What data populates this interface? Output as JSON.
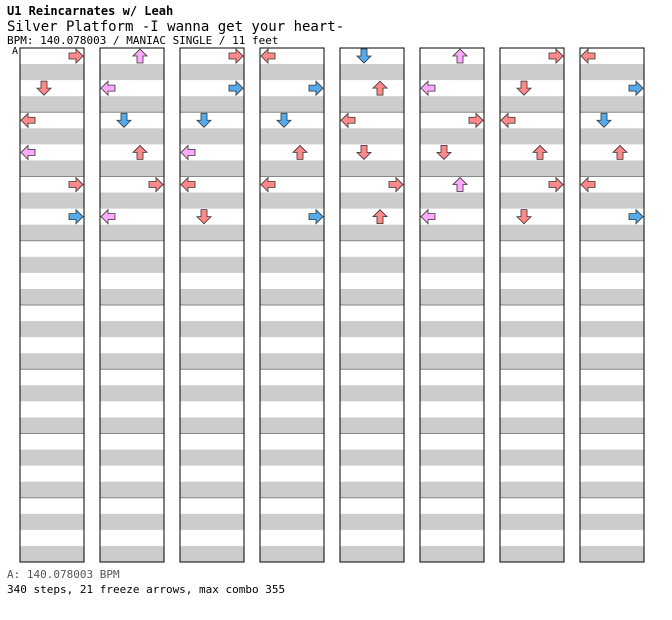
{
  "header": {
    "artist": "U1 Reincarnates w/ Leah",
    "title": "Silver Platform -I wanna get your heart-",
    "meta": "BPM: 140.078003 / MANIAC SINGLE / 11 feet"
  },
  "section_marker": "A",
  "footer": {
    "bpm": "A: 140.078003 BPM",
    "stats": "340 steps, 21 freeze arrows, max combo 355"
  },
  "colors": {
    "red": "#ff8888",
    "blue": "#55aaee",
    "pink": "#ffaaff",
    "freeze": "#aaffaa",
    "stripe": "#cccccc"
  },
  "chart_data": {
    "type": "step-chart",
    "lanes": [
      "left",
      "down",
      "up",
      "right"
    ],
    "columns": 8,
    "measures_per_column": 8,
    "notes": [
      [
        0,
        0,
        3
      ],
      [
        0,
        2,
        1
      ],
      [
        0,
        4,
        0
      ],
      [
        0,
        6,
        0
      ],
      [
        0,
        8,
        3
      ],
      [
        0,
        10,
        3
      ],
      [
        1,
        0,
        2
      ],
      [
        1,
        2,
        0
      ],
      [
        1,
        4,
        1
      ],
      [
        1,
        6,
        2
      ],
      [
        1,
        8,
        3
      ],
      [
        1,
        10,
        0
      ],
      [
        2,
        0,
        3
      ],
      [
        2,
        2,
        3
      ],
      [
        2,
        4,
        1
      ],
      [
        2,
        6,
        0
      ],
      [
        2,
        8,
        0
      ],
      [
        2,
        10,
        1
      ],
      [
        3,
        0,
        0
      ],
      [
        3,
        2,
        3
      ],
      [
        3,
        4,
        1
      ],
      [
        3,
        6,
        2
      ],
      [
        3,
        8,
        0
      ],
      [
        3,
        10,
        3
      ],
      [
        4,
        0,
        1
      ],
      [
        4,
        2,
        2
      ],
      [
        4,
        4,
        0
      ],
      [
        4,
        6,
        1
      ],
      [
        4,
        8,
        3
      ],
      [
        4,
        10,
        2
      ],
      [
        5,
        0,
        2
      ],
      [
        5,
        2,
        0
      ],
      [
        5,
        4,
        3
      ],
      [
        5,
        6,
        1
      ],
      [
        5,
        8,
        2
      ],
      [
        5,
        10,
        0
      ],
      [
        6,
        0,
        3
      ],
      [
        6,
        2,
        1
      ],
      [
        6,
        4,
        0
      ],
      [
        6,
        6,
        2
      ],
      [
        6,
        8,
        3
      ],
      [
        6,
        10,
        1
      ],
      [
        7,
        0,
        0
      ],
      [
        7,
        2,
        3
      ],
      [
        7,
        4,
        1
      ],
      [
        7,
        6,
        2
      ],
      [
        7,
        8,
        0
      ],
      [
        7,
        10,
        3
      ]
    ]
  }
}
